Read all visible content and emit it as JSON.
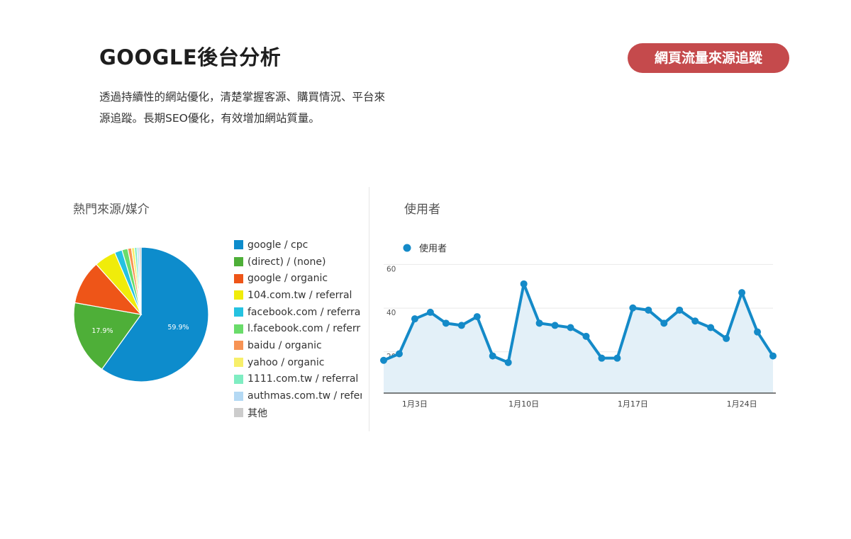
{
  "header": {
    "title": "GOOGLE後台分析",
    "badge": "網頁流量來源追蹤",
    "desc_line1": "透過持續性的網站優化，清楚掌握客源、購買情況、平台來",
    "desc_line2": "源追蹤。長期SEO優化，有效增加網站質量。"
  },
  "panels": {
    "pie_title": "熱門來源/媒介",
    "line_title": "使用者"
  },
  "chart_data": [
    {
      "type": "pie",
      "title": "熱門來源/媒介",
      "slices": [
        {
          "label": "google / cpc",
          "value": 59.9,
          "color": "#0d8ccc"
        },
        {
          "label": "(direct) / (none)",
          "value": 17.9,
          "color": "#4eaf38"
        },
        {
          "label": "google / organic",
          "value": 10.6,
          "color": "#ee5518"
        },
        {
          "label": "104.com.tw / referral",
          "value": 5.2,
          "color": "#f0ec0a"
        },
        {
          "label": "facebook.com / referra",
          "value": 1.8,
          "color": "#25c2e0"
        },
        {
          "label": "l.facebook.com / referr",
          "value": 1.4,
          "color": "#6adc6a"
        },
        {
          "label": "baidu / organic",
          "value": 0.9,
          "color": "#f79354"
        },
        {
          "label": "yahoo / organic",
          "value": 0.7,
          "color": "#f7ef6a"
        },
        {
          "label": "1111.com.tw / referral",
          "value": 0.6,
          "color": "#7fedc2"
        },
        {
          "label": "authmas.com.tw / refer",
          "value": 0.5,
          "color": "#b4d9f4"
        },
        {
          "label": "其他",
          "value": 0.5,
          "color": "#cccccc"
        }
      ],
      "data_labels": [
        "59.9%",
        "17.9%"
      ]
    },
    {
      "type": "line",
      "title": "使用者",
      "series": [
        {
          "name": "使用者",
          "color": "#148ac8",
          "values": [
            20,
            23,
            39,
            42,
            37,
            36,
            40,
            22,
            19,
            55,
            37,
            36,
            35,
            31,
            21,
            21,
            44,
            43,
            37,
            43,
            38,
            35,
            30,
            51,
            33,
            22
          ]
        }
      ],
      "x": [
        "1月1日",
        "1月2日",
        "1月3日",
        "1月4日",
        "1月5日",
        "1月6日",
        "1月7日",
        "1月8日",
        "1月9日",
        "1月10日",
        "1月11日",
        "1月12日",
        "1月13日",
        "1月14日",
        "1月15日",
        "1月16日",
        "1月17日",
        "1月18日",
        "1月19日",
        "1月20日",
        "1月21日",
        "1月22日",
        "1月23日",
        "1月24日",
        "1月25日",
        "1月26日"
      ],
      "x_tick_labels": [
        "1月3日",
        "1月10日",
        "1月17日",
        "1月24日"
      ],
      "y_tick_labels": [
        "20",
        "40",
        "60"
      ],
      "ylim": [
        5,
        65
      ],
      "grid": true,
      "legend": "top-left"
    }
  ]
}
